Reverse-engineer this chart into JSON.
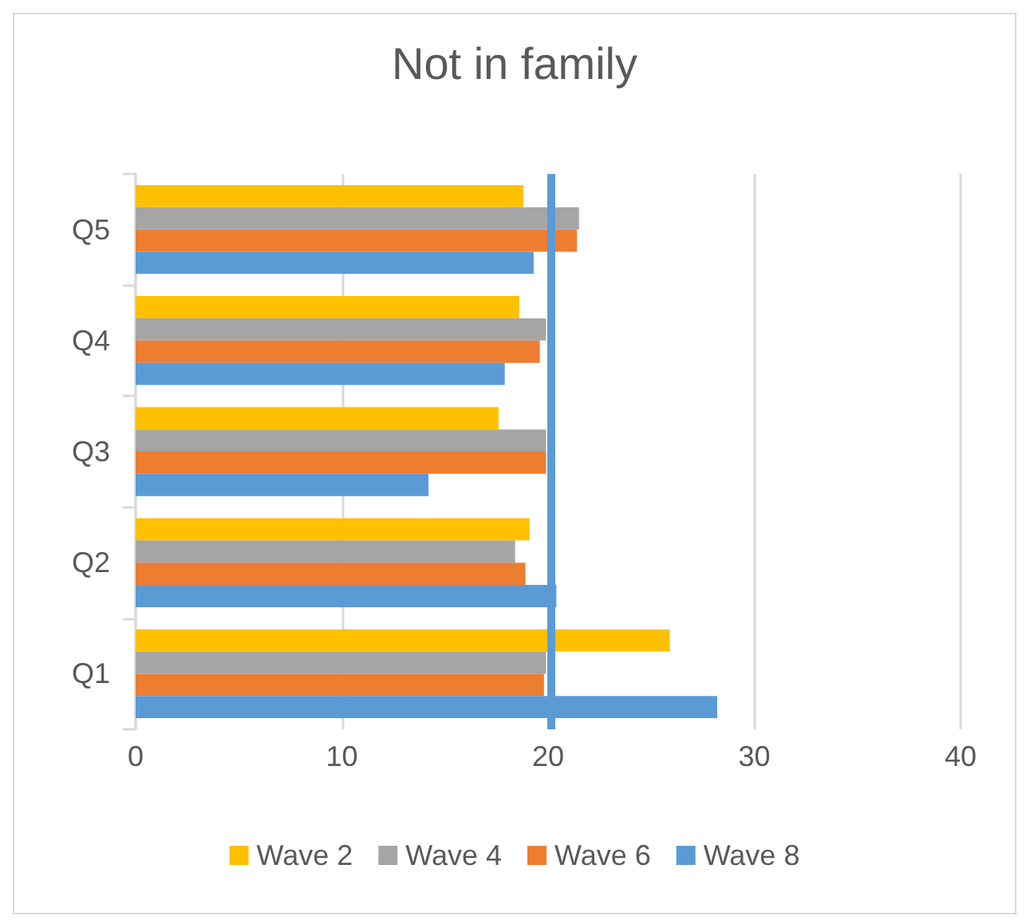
{
  "chart_data": {
    "type": "bar",
    "orientation": "horizontal",
    "title": "Not in family",
    "categories": [
      "Q5",
      "Q4",
      "Q3",
      "Q2",
      "Q1"
    ],
    "series": [
      {
        "name": "Wave 2",
        "color": "#ffc000",
        "values": [
          18.8,
          18.6,
          17.6,
          19.1,
          25.9
        ]
      },
      {
        "name": "Wave 4",
        "color": "#a5a5a5",
        "values": [
          21.5,
          19.9,
          19.9,
          18.4,
          19.9
        ]
      },
      {
        "name": "Wave 6",
        "color": "#ed7d31",
        "values": [
          21.4,
          19.6,
          19.9,
          18.9,
          19.8
        ]
      },
      {
        "name": "Wave 8",
        "color": "#5b9bd5",
        "values": [
          19.3,
          17.9,
          14.2,
          20.4,
          28.2
        ]
      }
    ],
    "xlim": [
      0,
      40
    ],
    "xticks": [
      0,
      10,
      20,
      30,
      40
    ],
    "grid": "x",
    "legend": "bottom",
    "ref_lines": [
      {
        "axis": "x",
        "value": 20.1,
        "color": "#5b9bd5"
      }
    ]
  }
}
